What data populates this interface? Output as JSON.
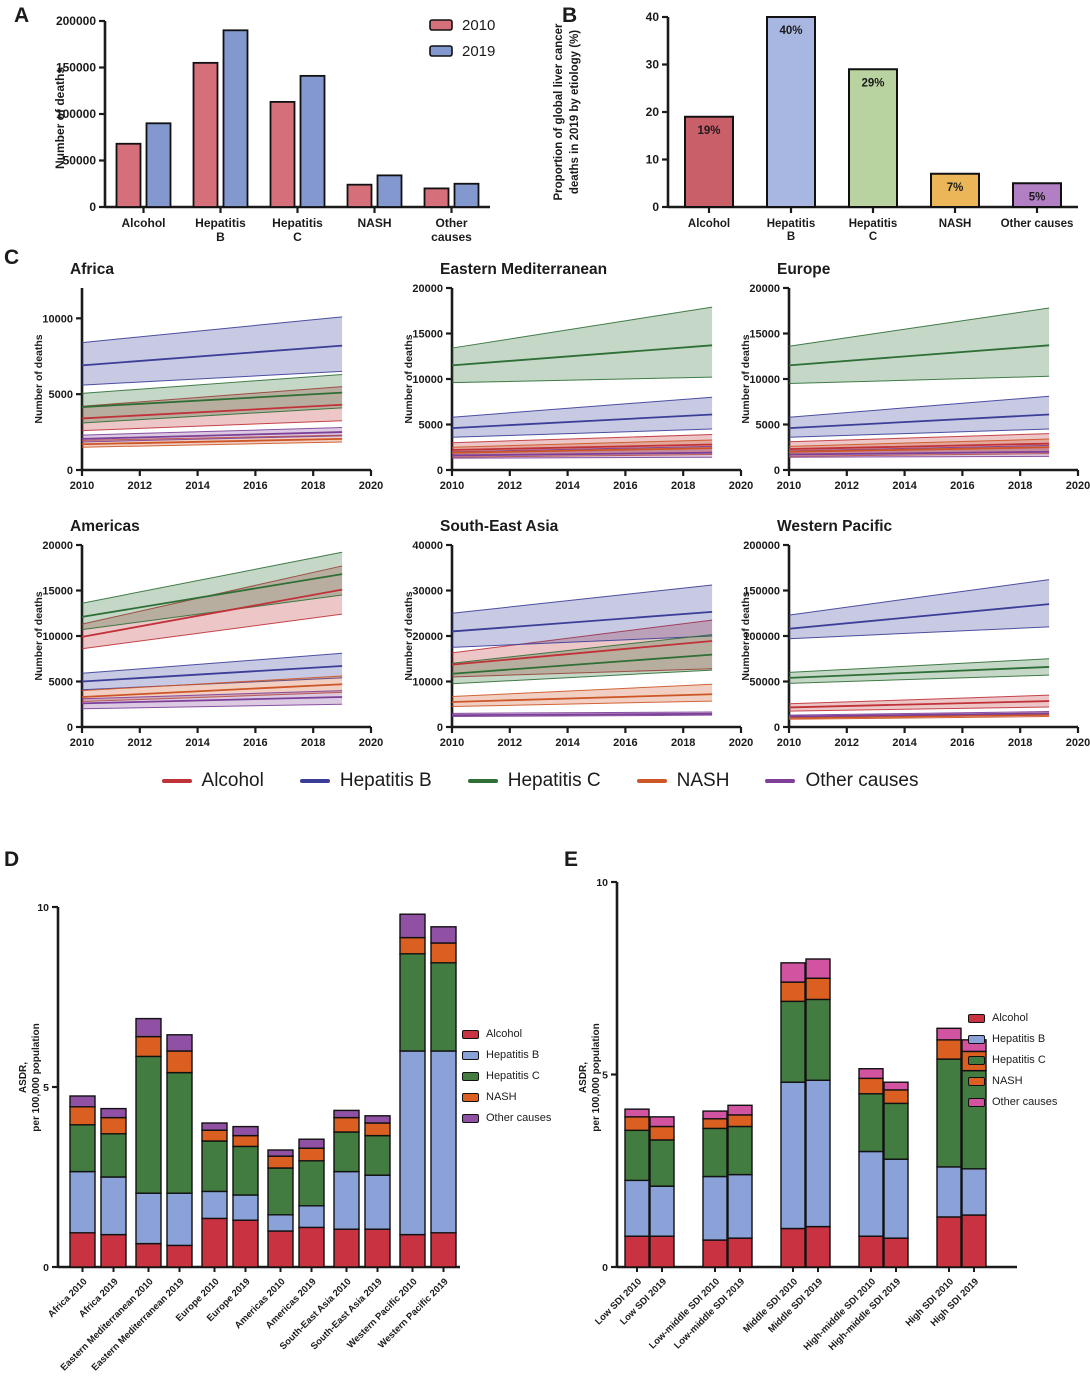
{
  "panels": {
    "a": "A",
    "b": "B",
    "c": "C",
    "d": "D",
    "e": "E"
  },
  "etiology_colors_lines": {
    "Alcohol": "#c03238",
    "Hepatitis B": "#3b3e98",
    "Hepatitis C": "#2e6f36",
    "NASH": "#cd5526",
    "Other causes": "#7d3f98"
  },
  "chart_data": [
    {
      "id": "A",
      "type": "bar",
      "title": "",
      "ylabel": "Number of deaths",
      "ylim": [
        0,
        200000
      ],
      "yticks": [
        0,
        50000,
        100000,
        150000,
        200000
      ],
      "categories": [
        "Alcohol",
        "Hepatitis\nB",
        "Hepatitis\nC",
        "NASH",
        "Other\ncauses"
      ],
      "series": [
        {
          "name": "2010",
          "color": "#d56f79",
          "values": [
            68000,
            155000,
            113000,
            24000,
            20000
          ]
        },
        {
          "name": "2019",
          "color": "#8398cf",
          "values": [
            90000,
            190000,
            141000,
            34000,
            25000
          ]
        }
      ],
      "legend_position": "top-right",
      "grid": false
    },
    {
      "id": "B",
      "type": "bar",
      "ylabel_lines": [
        "Proportion of global liver cancer",
        "deaths in 2019 by etiology (%)"
      ],
      "ylim": [
        0,
        40
      ],
      "yticks": [
        0,
        10,
        20,
        30,
        40
      ],
      "categories": [
        "Alcohol",
        "Hepatitis\nB",
        "Hepatitis\nC",
        "NASH",
        "Other causes"
      ],
      "values": [
        19,
        40,
        29,
        7,
        5
      ],
      "bar_labels": [
        "19%",
        "40%",
        "29%",
        "7%",
        "5%"
      ],
      "bar_colors": [
        "#c95f68",
        "#a7b7e2",
        "#b9d3a0",
        "#eab658",
        "#b27fc5"
      ],
      "grid": false
    },
    {
      "id": "C1",
      "panel": "C",
      "type": "line",
      "title": "Africa",
      "ylabel": "Number of deaths",
      "xlim": [
        2010,
        2020
      ],
      "xticks": [
        2010,
        2012,
        2014,
        2016,
        2018,
        2020
      ],
      "ylim": [
        0,
        12000
      ],
      "yticks": [
        0,
        5000,
        10000
      ],
      "x": [
        2010,
        2019
      ],
      "series": [
        {
          "name": "Alcohol",
          "color": "#c03238",
          "mean": [
            3400,
            4300
          ],
          "lo": [
            2600,
            3250
          ],
          "hi": [
            4200,
            5500
          ]
        },
        {
          "name": "Hepatitis B",
          "color": "#3b3e98",
          "mean": [
            6900,
            8200
          ],
          "lo": [
            5600,
            6500
          ],
          "hi": [
            8400,
            10100
          ]
        },
        {
          "name": "Hepatitis C",
          "color": "#2e6f36",
          "mean": [
            4150,
            5100
          ],
          "lo": [
            3100,
            4100
          ],
          "hi": [
            5050,
            6300
          ]
        },
        {
          "name": "NASH",
          "color": "#cd5526",
          "mean": [
            1700,
            2050
          ],
          "lo": [
            1500,
            1850
          ],
          "hi": [
            1950,
            2300
          ]
        },
        {
          "name": "Other causes",
          "color": "#7d3f98",
          "mean": [
            2050,
            2500
          ],
          "lo": [
            1850,
            2250
          ],
          "hi": [
            2300,
            2800
          ]
        }
      ]
    },
    {
      "id": "C2",
      "panel": "C",
      "type": "line",
      "title": "Eastern Mediterranean",
      "ylabel": "Number of deaths",
      "xlim": [
        2010,
        2020
      ],
      "xticks": [
        2010,
        2012,
        2014,
        2016,
        2018,
        2020
      ],
      "ylim": [
        0,
        20000
      ],
      "yticks": [
        0,
        5000,
        10000,
        15000,
        20000
      ],
      "x": [
        2010,
        2019
      ],
      "series": [
        {
          "name": "Alcohol",
          "color": "#c03238",
          "mean": [
            2200,
            2800
          ],
          "lo": [
            1600,
            1900
          ],
          "hi": [
            3000,
            3900
          ]
        },
        {
          "name": "Hepatitis B",
          "color": "#3b3e98",
          "mean": [
            4600,
            6100
          ],
          "lo": [
            3600,
            4500
          ],
          "hi": [
            5800,
            8000
          ]
        },
        {
          "name": "Hepatitis C",
          "color": "#2e6f36",
          "mean": [
            11500,
            13700
          ],
          "lo": [
            9600,
            10200
          ],
          "hi": [
            13400,
            17900
          ]
        },
        {
          "name": "NASH",
          "color": "#cd5526",
          "mean": [
            1900,
            2400
          ],
          "lo": [
            1400,
            1700
          ],
          "hi": [
            2500,
            3300
          ]
        },
        {
          "name": "Other causes",
          "color": "#7d3f98",
          "mean": [
            1600,
            1900
          ],
          "lo": [
            1300,
            1400
          ],
          "hi": [
            2000,
            2600
          ]
        }
      ]
    },
    {
      "id": "C3",
      "panel": "C",
      "type": "line",
      "title": "Europe",
      "ylabel": "Number of deaths",
      "xlim": [
        2010,
        2020
      ],
      "xticks": [
        2010,
        2012,
        2014,
        2016,
        2018,
        2020
      ],
      "ylim": [
        0,
        20000
      ],
      "yticks": [
        0,
        5000,
        10000,
        15000,
        20000
      ],
      "x": [
        2010,
        2019
      ],
      "series": [
        {
          "name": "Alcohol",
          "color": "#c03238",
          "mean": [
            2300,
            2900
          ],
          "lo": [
            1700,
            2000
          ],
          "hi": [
            3100,
            4000
          ]
        },
        {
          "name": "Hepatitis B",
          "color": "#3b3e98",
          "mean": [
            4600,
            6100
          ],
          "lo": [
            3600,
            4500
          ],
          "hi": [
            5800,
            8100
          ]
        },
        {
          "name": "Hepatitis C",
          "color": "#2e6f36",
          "mean": [
            11500,
            13700
          ],
          "lo": [
            9500,
            10300
          ],
          "hi": [
            13600,
            17800
          ]
        },
        {
          "name": "NASH",
          "color": "#cd5526",
          "mean": [
            2000,
            2500
          ],
          "lo": [
            1500,
            1800
          ],
          "hi": [
            2600,
            3400
          ]
        },
        {
          "name": "Other causes",
          "color": "#7d3f98",
          "mean": [
            1700,
            2000
          ],
          "lo": [
            1400,
            1500
          ],
          "hi": [
            2100,
            2700
          ]
        }
      ]
    },
    {
      "id": "C4",
      "panel": "C",
      "type": "line",
      "title": "Americas",
      "ylabel": "Number of deaths",
      "xlim": [
        2010,
        2020
      ],
      "xticks": [
        2010,
        2012,
        2014,
        2016,
        2018,
        2020
      ],
      "ylim": [
        0,
        20000
      ],
      "yticks": [
        0,
        5000,
        10000,
        15000,
        20000
      ],
      "x": [
        2010,
        2019
      ],
      "series": [
        {
          "name": "Alcohol",
          "color": "#c03238",
          "mean": [
            9900,
            15100
          ],
          "lo": [
            8600,
            12400
          ],
          "hi": [
            11300,
            17700
          ]
        },
        {
          "name": "Hepatitis B",
          "color": "#3b3e98",
          "mean": [
            5000,
            6700
          ],
          "lo": [
            4100,
            5400
          ],
          "hi": [
            5900,
            8100
          ]
        },
        {
          "name": "Hepatitis C",
          "color": "#2e6f36",
          "mean": [
            12100,
            16800
          ],
          "lo": [
            10700,
            14500
          ],
          "hi": [
            13600,
            19200
          ]
        },
        {
          "name": "NASH",
          "color": "#cd5526",
          "mean": [
            3300,
            4700
          ],
          "lo": [
            2800,
            3800
          ],
          "hi": [
            4000,
            5600
          ]
        },
        {
          "name": "Other causes",
          "color": "#7d3f98",
          "mean": [
            2600,
            3300
          ],
          "lo": [
            2000,
            2500
          ],
          "hi": [
            3100,
            4000
          ]
        }
      ]
    },
    {
      "id": "C5",
      "panel": "C",
      "type": "line",
      "title": "South-East Asia",
      "ylabel": "Number of deaths",
      "xlim": [
        2010,
        2020
      ],
      "xticks": [
        2010,
        2012,
        2014,
        2016,
        2018,
        2020
      ],
      "ylim": [
        0,
        40000
      ],
      "yticks": [
        0,
        10000,
        20000,
        30000,
        40000
      ],
      "x": [
        2010,
        2019
      ],
      "series": [
        {
          "name": "Alcohol",
          "color": "#c03238",
          "mean": [
            13700,
            18900
          ],
          "lo": [
            11000,
            12800
          ],
          "hi": [
            16300,
            23500
          ]
        },
        {
          "name": "Hepatitis B",
          "color": "#3b3e98",
          "mean": [
            21000,
            25300
          ],
          "lo": [
            17500,
            20000
          ],
          "hi": [
            25000,
            31200
          ]
        },
        {
          "name": "Hepatitis C",
          "color": "#2e6f36",
          "mean": [
            11700,
            15900
          ],
          "lo": [
            9500,
            12500
          ],
          "hi": [
            14000,
            20300
          ]
        },
        {
          "name": "NASH",
          "color": "#cd5526",
          "mean": [
            5500,
            7200
          ],
          "lo": [
            4500,
            5700
          ],
          "hi": [
            6700,
            9400
          ]
        },
        {
          "name": "Other causes",
          "color": "#7d3f98",
          "mean": [
            2600,
            2900
          ],
          "lo": [
            2300,
            2600
          ],
          "hi": [
            3000,
            3300
          ]
        }
      ]
    },
    {
      "id": "C6",
      "panel": "C",
      "type": "line",
      "title": "Western Pacific",
      "ylabel": "Number of deaths",
      "xlim": [
        2010,
        2020
      ],
      "xticks": [
        2010,
        2012,
        2014,
        2016,
        2018,
        2020
      ],
      "ylim": [
        0,
        200000
      ],
      "yticks": [
        0,
        50000,
        100000,
        150000,
        200000
      ],
      "x": [
        2010,
        2019
      ],
      "series": [
        {
          "name": "Alcohol",
          "color": "#c03238",
          "mean": [
            21500,
            28500
          ],
          "lo": [
            17500,
            22000
          ],
          "hi": [
            25500,
            35000
          ]
        },
        {
          "name": "Hepatitis B",
          "color": "#3b3e98",
          "mean": [
            108000,
            135000
          ],
          "lo": [
            97000,
            110000
          ],
          "hi": [
            123000,
            162000
          ]
        },
        {
          "name": "Hepatitis C",
          "color": "#2e6f36",
          "mean": [
            54000,
            66000
          ],
          "lo": [
            48000,
            57000
          ],
          "hi": [
            60000,
            75000
          ]
        },
        {
          "name": "NASH",
          "color": "#cd5526",
          "mean": [
            10000,
            13500
          ],
          "lo": [
            8500,
            11500
          ],
          "hi": [
            11500,
            15500
          ]
        },
        {
          "name": "Other causes",
          "color": "#7d3f98",
          "mean": [
            11500,
            15000
          ],
          "lo": [
            10000,
            13000
          ],
          "hi": [
            13000,
            17000
          ]
        }
      ]
    },
    {
      "id": "D",
      "type": "bar",
      "stacked": true,
      "ylabel_lines": [
        "ASDR,",
        "per 100,000 population"
      ],
      "ylim": [
        0,
        10
      ],
      "yticks": [
        0,
        5,
        10
      ],
      "categories": [
        "Africa 2010",
        "Africa 2019",
        "Eastern Mediterranean 2010",
        "Eastern Mediterranean 2019",
        "Europe 2010",
        "Europe 2019",
        "Americas 2010",
        "Americas 2019",
        "South-East Asia 2010",
        "South-East Asia 2019",
        "Western Pacific 2010",
        "Western Pacific 2019"
      ],
      "series": [
        {
          "name": "Alcohol",
          "color": "#c93240",
          "values": [
            0.95,
            0.9,
            0.65,
            0.6,
            1.35,
            1.3,
            1.0,
            1.1,
            1.05,
            1.05,
            0.9,
            0.95
          ]
        },
        {
          "name": "Hepatitis B",
          "color": "#8ba2d8",
          "values": [
            1.7,
            1.6,
            1.4,
            1.45,
            0.75,
            0.7,
            0.45,
            0.6,
            1.6,
            1.5,
            5.1,
            5.05
          ]
        },
        {
          "name": "Hepatitis C",
          "color": "#427c40",
          "values": [
            1.3,
            1.2,
            3.8,
            3.35,
            1.4,
            1.35,
            1.3,
            1.25,
            1.1,
            1.1,
            2.7,
            2.45
          ]
        },
        {
          "name": "NASH",
          "color": "#da5f20",
          "values": [
            0.5,
            0.45,
            0.55,
            0.6,
            0.3,
            0.3,
            0.33,
            0.35,
            0.4,
            0.35,
            0.45,
            0.55
          ]
        },
        {
          "name": "Other causes",
          "color": "#9051a5",
          "values": [
            0.3,
            0.25,
            0.5,
            0.45,
            0.2,
            0.25,
            0.17,
            0.25,
            0.2,
            0.2,
            0.65,
            0.45
          ]
        }
      ],
      "legend_position": "right"
    },
    {
      "id": "E",
      "type": "bar",
      "stacked": true,
      "ylabel_lines": [
        "ASDR,",
        "per 100,000 population"
      ],
      "ylim": [
        0,
        10
      ],
      "yticks": [
        0,
        5,
        10
      ],
      "categories": [
        "Low SDI 2010",
        "Low SDI 2019",
        "Low-middle SDI 2010",
        "Low-middle SDI 2019",
        "Middle SDI 2010",
        "Middle SDI 2019",
        "High-middle SDI 2010",
        "High-middle SDI 2019",
        "High SDI 2010",
        "High SDI 2019"
      ],
      "series": [
        {
          "name": "Alcohol",
          "color": "#c93240",
          "values": [
            0.8,
            0.8,
            0.7,
            0.75,
            1.0,
            1.05,
            0.8,
            0.75,
            1.3,
            1.35
          ]
        },
        {
          "name": "Hepatitis B",
          "color": "#8ba2d8",
          "values": [
            1.45,
            1.3,
            1.65,
            1.65,
            3.8,
            3.8,
            2.2,
            2.05,
            1.3,
            1.2
          ]
        },
        {
          "name": "Hepatitis C",
          "color": "#427c40",
          "values": [
            1.3,
            1.2,
            1.25,
            1.25,
            2.1,
            2.1,
            1.5,
            1.45,
            2.8,
            2.55
          ]
        },
        {
          "name": "NASH",
          "color": "#da5f20",
          "values": [
            0.35,
            0.35,
            0.25,
            0.3,
            0.5,
            0.55,
            0.4,
            0.35,
            0.5,
            0.5
          ]
        },
        {
          "name": "Other causes",
          "color": "#d254a0",
          "values": [
            0.2,
            0.25,
            0.2,
            0.25,
            0.5,
            0.5,
            0.25,
            0.2,
            0.3,
            0.3
          ]
        }
      ],
      "legend_position": "right"
    }
  ],
  "c_legend": [
    {
      "label": "Alcohol",
      "color": "#c03238"
    },
    {
      "label": "Hepatitis B",
      "color": "#3b3e98"
    },
    {
      "label": "Hepatitis C",
      "color": "#2e6f36"
    },
    {
      "label": "NASH",
      "color": "#cd5526"
    },
    {
      "label": "Other causes",
      "color": "#7d3f98"
    }
  ]
}
